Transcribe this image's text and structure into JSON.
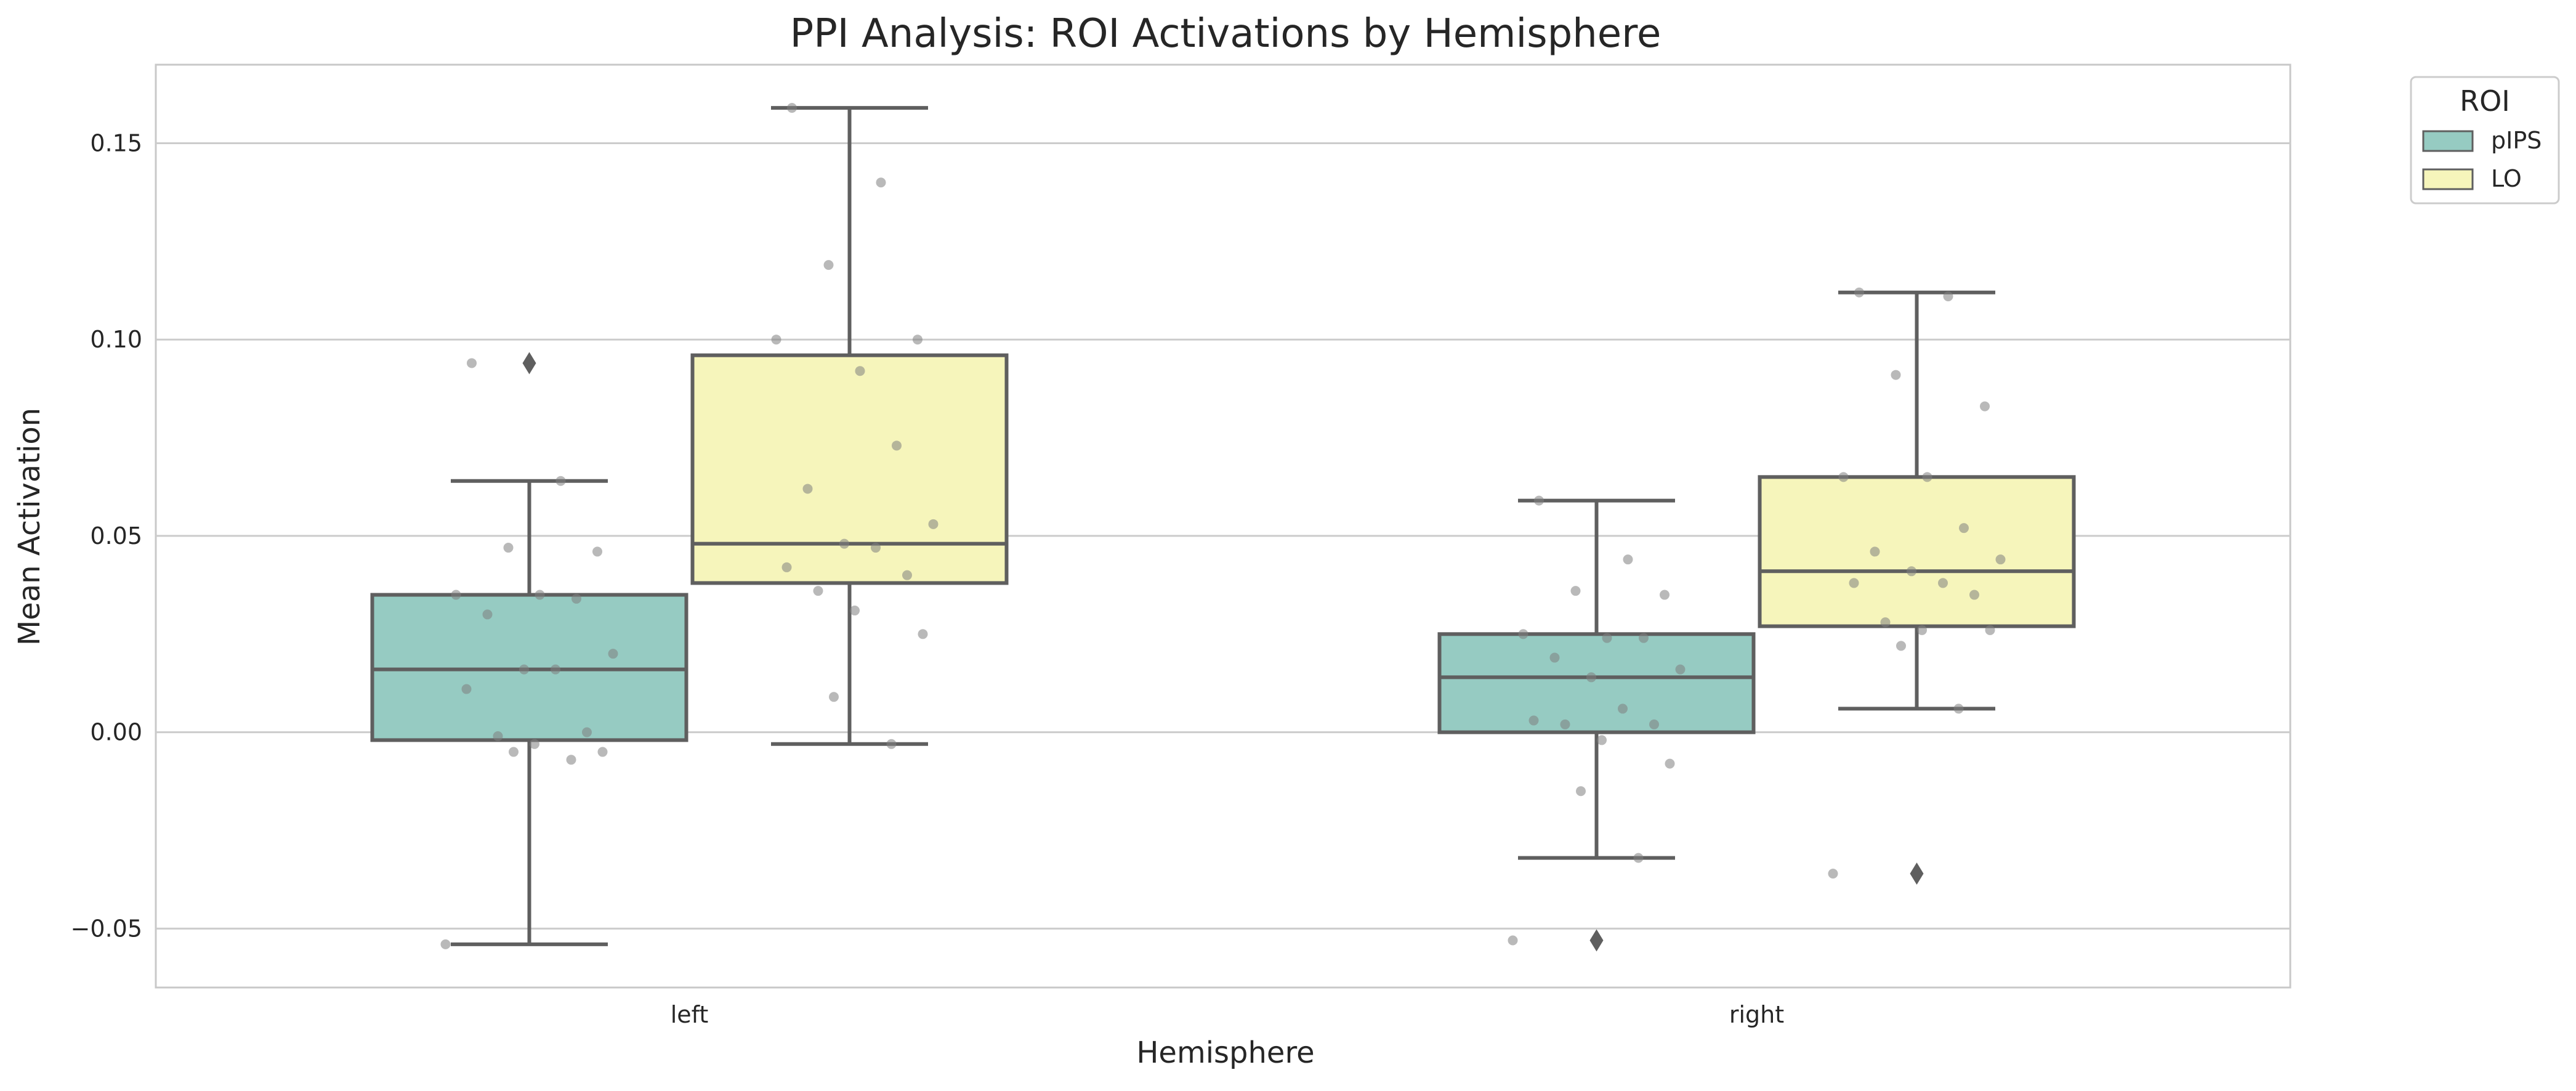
{
  "chart_data": {
    "type": "box",
    "title": "PPI Analysis: ROI Activations by Hemisphere",
    "xlabel": "Hemisphere",
    "ylabel": "Mean Activation",
    "categories": [
      "left",
      "right"
    ],
    "ylim": [
      -0.065,
      0.17
    ],
    "yticks": [
      -0.05,
      0.0,
      0.05,
      0.1,
      0.15
    ],
    "ytick_labels": [
      "−0.05",
      "0.00",
      "0.05",
      "0.10",
      "0.15"
    ],
    "grid": "horizontal",
    "legend": {
      "title": "ROI",
      "placement": "upper-right-outside"
    },
    "colors": {
      "pIPS": "#96cbc2",
      "LO": "#f6f5bb",
      "line": "#5f5f5f",
      "points": "#808080",
      "grid": "#cccccc",
      "frame": "#c8c8c8"
    },
    "series": [
      {
        "name": "pIPS",
        "boxes": [
          {
            "category": "left",
            "whisker_low": -0.054,
            "q1": -0.002,
            "median": 0.016,
            "q3": 0.035,
            "whisker_high": 0.064,
            "outliers": [
              0.094
            ],
            "points": [
              0.094,
              0.064,
              0.047,
              0.046,
              0.035,
              0.035,
              0.034,
              0.03,
              0.02,
              0.016,
              0.016,
              0.011,
              0.0,
              -0.001,
              -0.003,
              -0.005,
              -0.005,
              -0.007,
              -0.054
            ]
          },
          {
            "category": "right",
            "whisker_low": -0.032,
            "q1": 0.0,
            "median": 0.014,
            "q3": 0.025,
            "whisker_high": 0.059,
            "outliers": [
              -0.053
            ],
            "points": [
              0.059,
              0.044,
              0.036,
              0.035,
              0.025,
              0.024,
              0.024,
              0.019,
              0.016,
              0.014,
              0.006,
              0.003,
              0.002,
              0.002,
              -0.002,
              -0.008,
              -0.015,
              -0.032,
              -0.053
            ]
          }
        ]
      },
      {
        "name": "LO",
        "boxes": [
          {
            "category": "left",
            "whisker_low": -0.003,
            "q1": 0.038,
            "median": 0.048,
            "q3": 0.096,
            "whisker_high": 0.159,
            "outliers": [],
            "points": [
              0.159,
              0.14,
              0.119,
              0.1,
              0.1,
              0.092,
              0.073,
              0.062,
              0.053,
              0.048,
              0.047,
              0.042,
              0.04,
              0.036,
              0.031,
              0.025,
              0.009,
              -0.003
            ]
          },
          {
            "category": "right",
            "whisker_low": 0.006,
            "q1": 0.027,
            "median": 0.041,
            "q3": 0.065,
            "whisker_high": 0.112,
            "outliers": [
              -0.036
            ],
            "points": [
              0.112,
              0.111,
              0.091,
              0.083,
              0.065,
              0.065,
              0.052,
              0.046,
              0.044,
              0.041,
              0.038,
              0.038,
              0.035,
              0.028,
              0.026,
              0.026,
              0.022,
              0.006,
              -0.036
            ]
          }
        ]
      }
    ]
  }
}
